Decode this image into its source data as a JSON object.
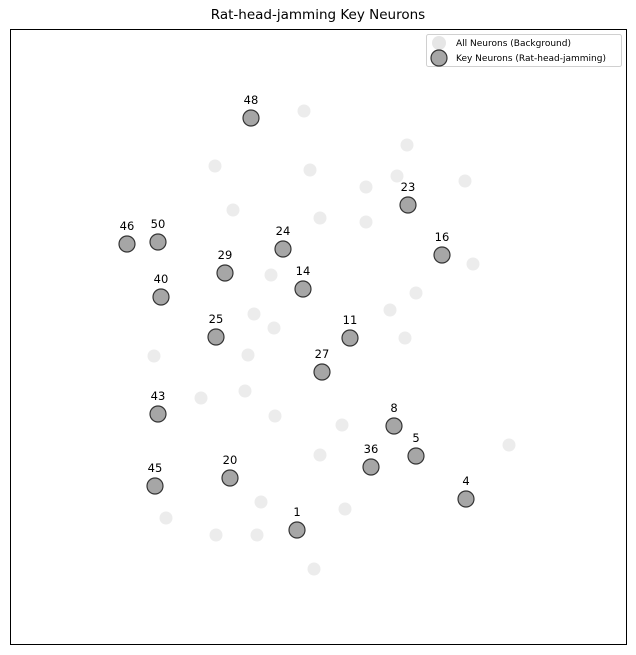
{
  "chart_data": {
    "type": "scatter",
    "title": "Rat-head-jamming Key Neurons",
    "xlabel": "",
    "ylabel": "",
    "grid": false,
    "axes_ticks": false,
    "legend_position": "top-right",
    "x_range": [
      0,
      616
    ],
    "y_range": [
      0,
      615
    ],
    "colors": {
      "background_point": "#e6e6e6",
      "key_point_fill": "#a6a6a6",
      "key_point_edge": "#333333",
      "frame": "#000000"
    },
    "series": [
      {
        "name": "All Neurons (Background)",
        "points": [
          {
            "x": 294,
            "y": 533
          },
          {
            "x": 397,
            "y": 499
          },
          {
            "x": 205,
            "y": 478
          },
          {
            "x": 300,
            "y": 474
          },
          {
            "x": 387,
            "y": 468
          },
          {
            "x": 356,
            "y": 457
          },
          {
            "x": 455,
            "y": 463
          },
          {
            "x": 223,
            "y": 434
          },
          {
            "x": 310,
            "y": 426
          },
          {
            "x": 356,
            "y": 422
          },
          {
            "x": 463,
            "y": 380
          },
          {
            "x": 406,
            "y": 351
          },
          {
            "x": 261,
            "y": 369
          },
          {
            "x": 380,
            "y": 334
          },
          {
            "x": 244,
            "y": 330
          },
          {
            "x": 264,
            "y": 316
          },
          {
            "x": 395,
            "y": 306
          },
          {
            "x": 144,
            "y": 288
          },
          {
            "x": 238,
            "y": 289
          },
          {
            "x": 235,
            "y": 253
          },
          {
            "x": 191,
            "y": 246
          },
          {
            "x": 265,
            "y": 228
          },
          {
            "x": 332,
            "y": 219
          },
          {
            "x": 310,
            "y": 189
          },
          {
            "x": 499,
            "y": 199
          },
          {
            "x": 156,
            "y": 126
          },
          {
            "x": 251,
            "y": 142
          },
          {
            "x": 335,
            "y": 135
          },
          {
            "x": 206,
            "y": 109
          },
          {
            "x": 247,
            "y": 109
          },
          {
            "x": 304,
            "y": 75
          }
        ]
      },
      {
        "name": "Key Neurons (Rat-head-jamming)",
        "points": [
          {
            "label": "48",
            "x": 241,
            "y": 526
          },
          {
            "label": "23",
            "x": 398,
            "y": 439
          },
          {
            "label": "46",
            "x": 117,
            "y": 400
          },
          {
            "label": "50",
            "x": 148,
            "y": 402
          },
          {
            "label": "24",
            "x": 273,
            "y": 395
          },
          {
            "label": "16",
            "x": 432,
            "y": 389
          },
          {
            "label": "29",
            "x": 215,
            "y": 371
          },
          {
            "label": "14",
            "x": 293,
            "y": 355
          },
          {
            "label": "40",
            "x": 151,
            "y": 347
          },
          {
            "label": "25",
            "x": 206,
            "y": 307
          },
          {
            "label": "11",
            "x": 340,
            "y": 306
          },
          {
            "label": "27",
            "x": 312,
            "y": 272
          },
          {
            "label": "43",
            "x": 148,
            "y": 230
          },
          {
            "label": "8",
            "x": 384,
            "y": 218
          },
          {
            "label": "5",
            "x": 406,
            "y": 188
          },
          {
            "label": "36",
            "x": 361,
            "y": 177
          },
          {
            "label": "45",
            "x": 145,
            "y": 158
          },
          {
            "label": "20",
            "x": 220,
            "y": 166
          },
          {
            "label": "4",
            "x": 456,
            "y": 145
          },
          {
            "label": "1",
            "x": 287,
            "y": 114
          }
        ]
      }
    ]
  }
}
